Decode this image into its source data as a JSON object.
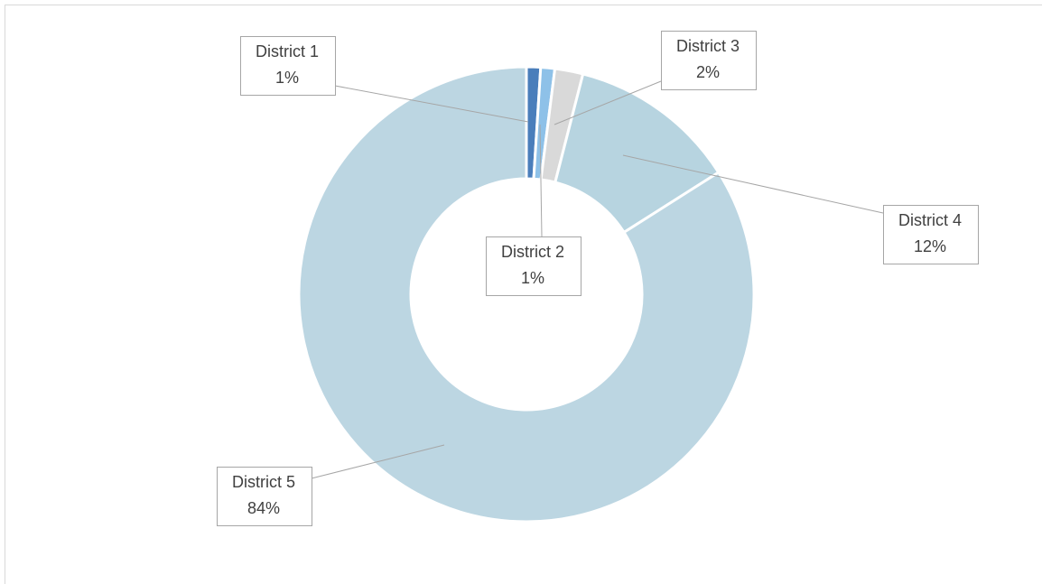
{
  "chart_data": {
    "type": "donut",
    "categories": [
      "District 1",
      "District 2",
      "District 3",
      "District 4",
      "District 5"
    ],
    "values": [
      1,
      1,
      2,
      12,
      84
    ],
    "value_labels": [
      "1%",
      "1%",
      "2%",
      "12%",
      "84%"
    ],
    "colors": [
      "#4a7ebb",
      "#8ec1e8",
      "#d9d9d9",
      "#b7d4e0",
      "#bcd6e2"
    ]
  }
}
